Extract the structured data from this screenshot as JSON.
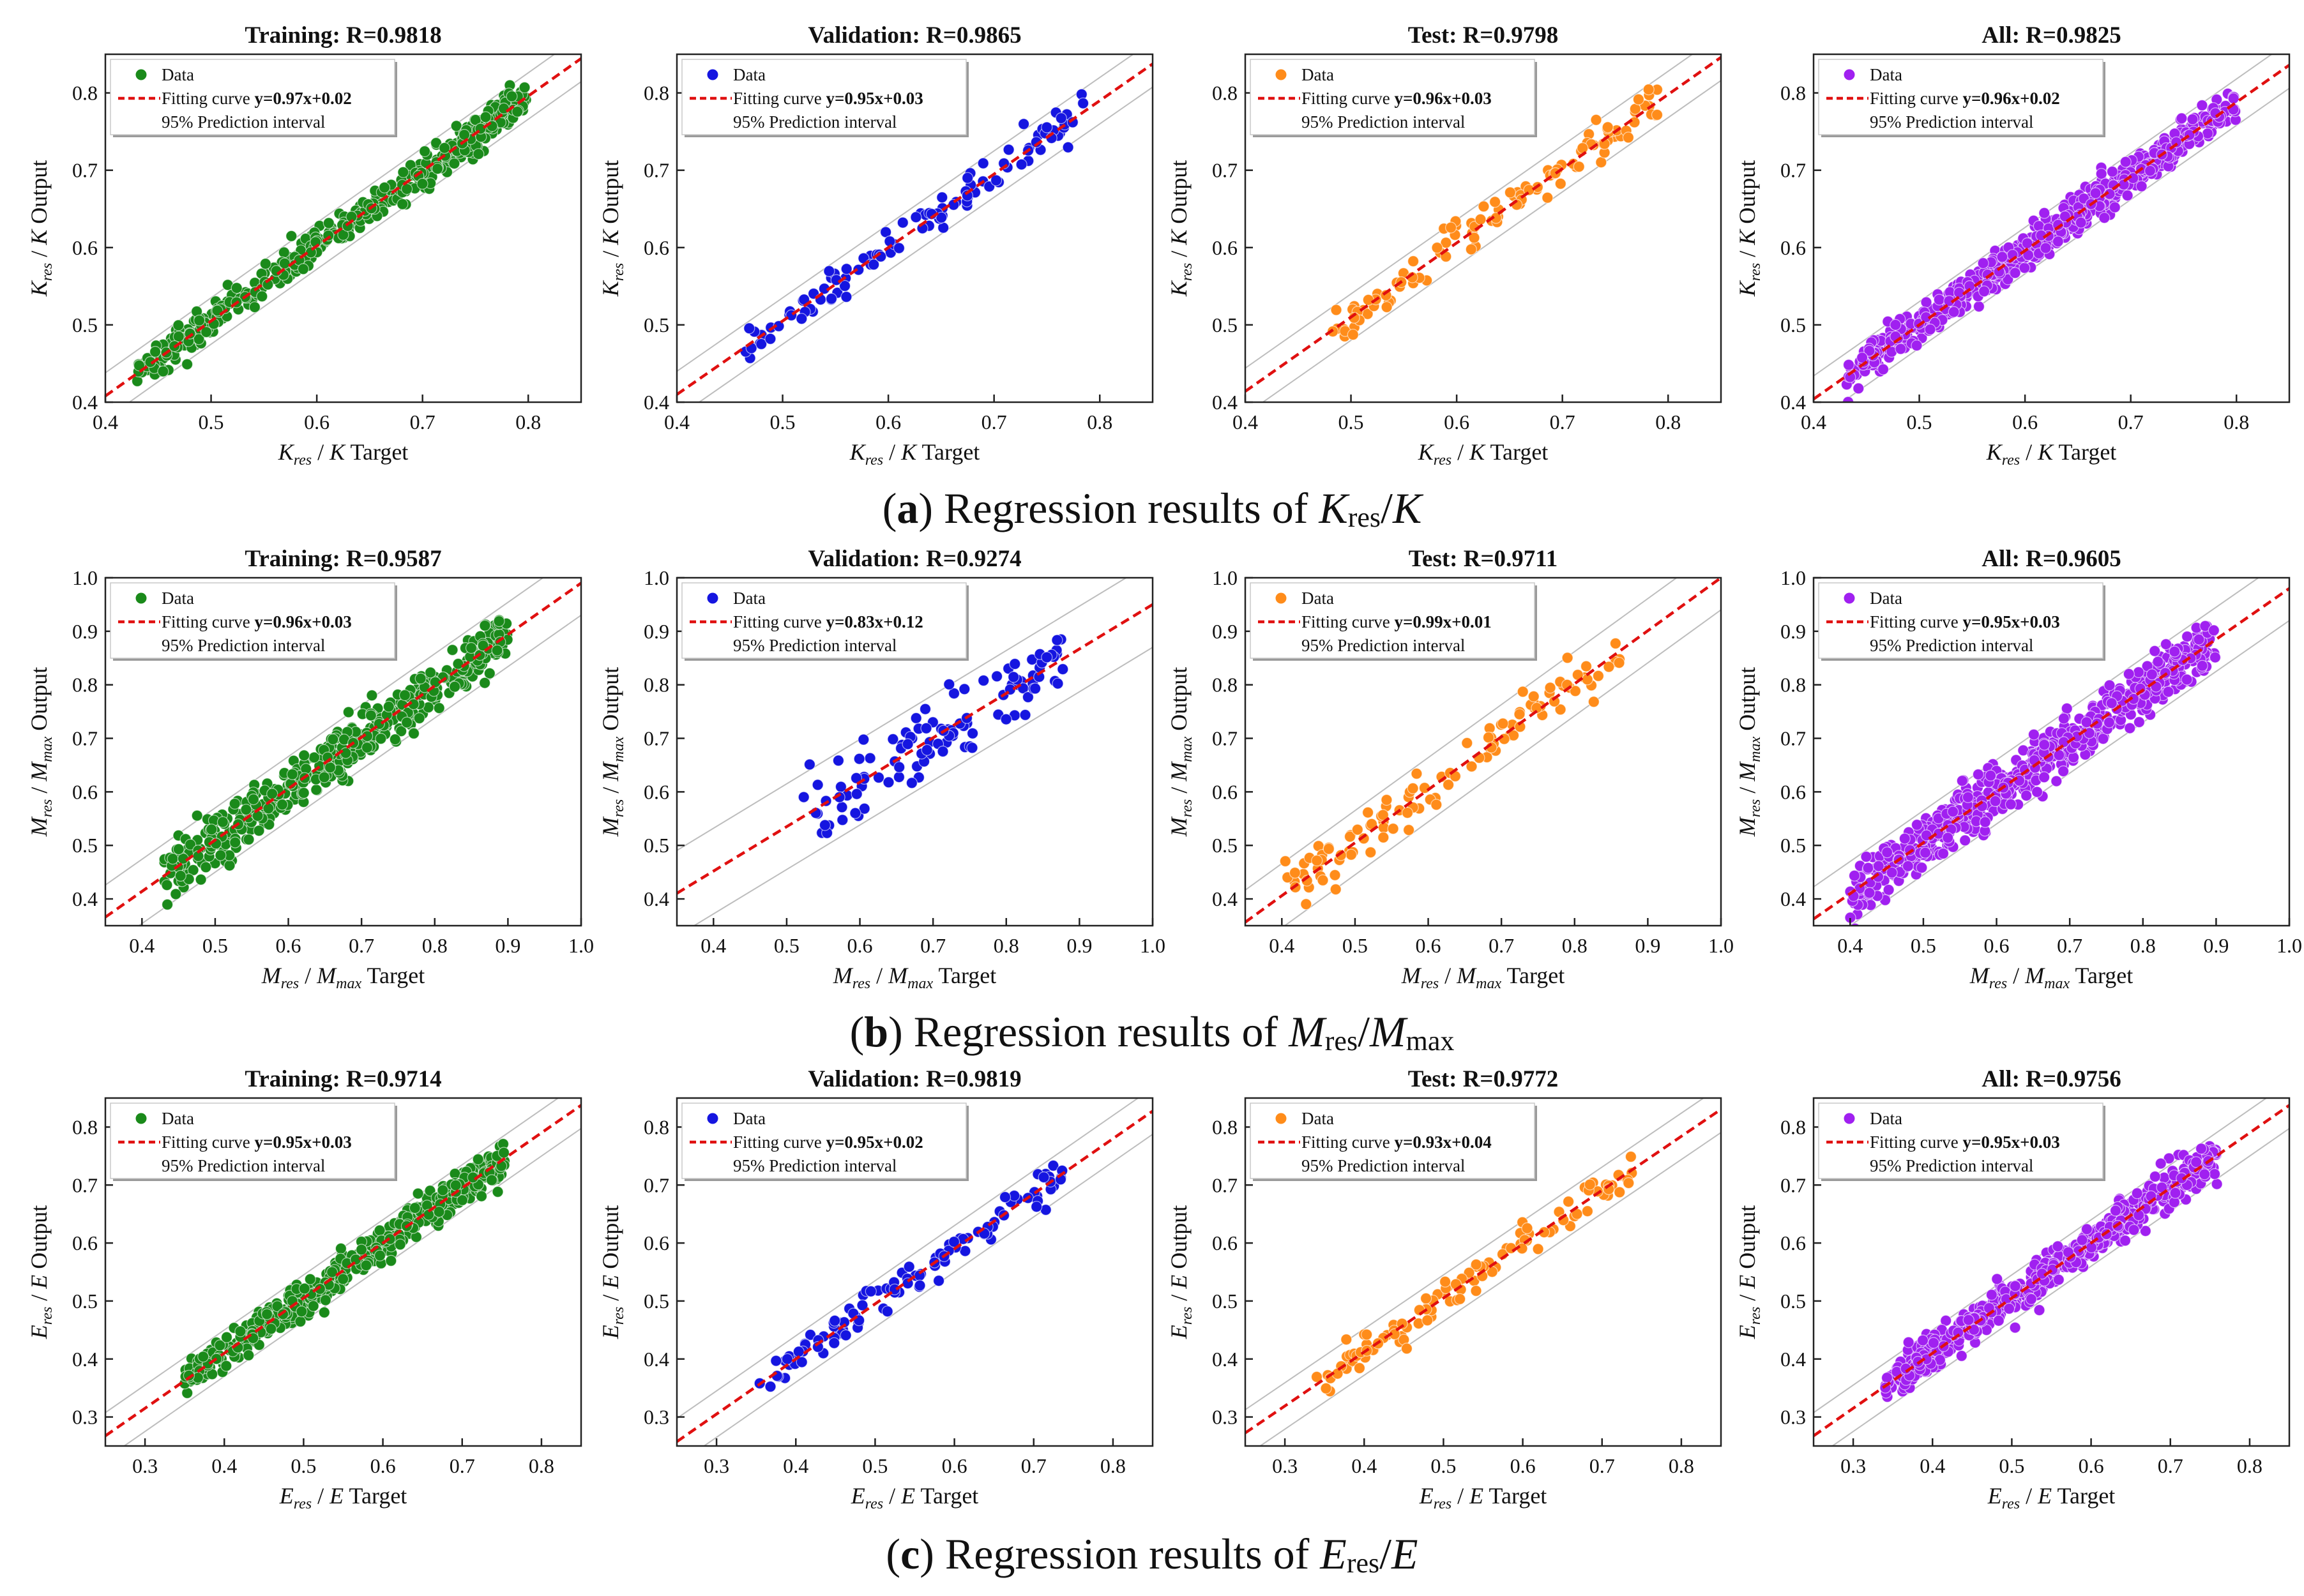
{
  "figure": {
    "captions": [
      {
        "letter": "a",
        "open": "(",
        "close": ")",
        "prefix": " Regression results of ",
        "num_var": "K",
        "num_sub": "res",
        "slash": "/",
        "den_var": "K",
        "den_sub": ""
      },
      {
        "letter": "b",
        "open": "(",
        "close": ")",
        "prefix": " Regression results of ",
        "num_var": "M",
        "num_sub": "res",
        "slash": "/",
        "den_var": "M",
        "den_sub": "max"
      },
      {
        "letter": "c",
        "open": "(",
        "close": ")",
        "prefix": " Regression results of ",
        "num_var": "E",
        "num_sub": "res",
        "slash": "/",
        "den_var": "E",
        "den_sub": ""
      }
    ],
    "legend": {
      "data_label": "Data",
      "fit_label": "Fitting curve",
      "pi_label": "95% Prediction interval"
    },
    "axis_suffix": {
      "x": "Target",
      "y": "Output"
    }
  },
  "colors": {
    "Training": "#1a8a1a",
    "Validation": "#1515e0",
    "Test": "#ff8c1a",
    "All": "#a020f0",
    "fit": "#e01010",
    "pi": "#bdbdbd"
  },
  "chart_data": [
    {
      "type": "scatter",
      "group": "a",
      "title": "Training: R=0.9818",
      "set": "Training",
      "xlabel": "Kres / K Target",
      "ylabel": "Kres / K Output",
      "var": {
        "num": "K",
        "num_sub": "res",
        "den": "K",
        "den_sub": ""
      },
      "xlim": [
        0.4,
        0.85
      ],
      "ylim": [
        0.4,
        0.85
      ],
      "xticks": [
        "0.4",
        "0.5",
        "0.6",
        "0.7",
        "0.8"
      ],
      "yticks": [
        "0.4",
        "0.5",
        "0.6",
        "0.7",
        "0.8"
      ],
      "fit": {
        "label": "y=0.97x+0.02",
        "slope": 0.97,
        "intercept": 0.02
      },
      "pi_half_width": 0.03,
      "n": 480,
      "x_range": [
        0.43,
        0.8
      ],
      "noise": 0.012
    },
    {
      "type": "scatter",
      "group": "a",
      "title": "Validation: R=0.9865",
      "set": "Validation",
      "xlabel": "Kres / K Target",
      "ylabel": "Kres / K Output",
      "var": {
        "num": "K",
        "num_sub": "res",
        "den": "K",
        "den_sub": ""
      },
      "xlim": [
        0.4,
        0.85
      ],
      "ylim": [
        0.4,
        0.85
      ],
      "xticks": [
        "0.4",
        "0.5",
        "0.6",
        "0.7",
        "0.8"
      ],
      "yticks": [
        "0.4",
        "0.5",
        "0.6",
        "0.7",
        "0.8"
      ],
      "fit": {
        "label": "y=0.95x+0.03",
        "slope": 0.95,
        "intercept": 0.03
      },
      "pi_half_width": 0.03,
      "n": 110,
      "x_range": [
        0.46,
        0.79
      ],
      "noise": 0.012
    },
    {
      "type": "scatter",
      "group": "a",
      "title": "Test: R=0.9798",
      "set": "Test",
      "xlabel": "Kres / K Target",
      "ylabel": "Kres / K Output",
      "var": {
        "num": "K",
        "num_sub": "res",
        "den": "K",
        "den_sub": ""
      },
      "xlim": [
        0.4,
        0.85
      ],
      "ylim": [
        0.4,
        0.85
      ],
      "xticks": [
        "0.4",
        "0.5",
        "0.6",
        "0.7",
        "0.8"
      ],
      "yticks": [
        "0.4",
        "0.5",
        "0.6",
        "0.7",
        "0.8"
      ],
      "fit": {
        "label": "y=0.96x+0.03",
        "slope": 0.96,
        "intercept": 0.03
      },
      "pi_half_width": 0.03,
      "n": 110,
      "x_range": [
        0.48,
        0.79
      ],
      "noise": 0.012
    },
    {
      "type": "scatter",
      "group": "a",
      "title": "All: R=0.9825",
      "set": "All",
      "xlabel": "Kres / K Target",
      "ylabel": "Kres / K Output",
      "var": {
        "num": "K",
        "num_sub": "res",
        "den": "K",
        "den_sub": ""
      },
      "xlim": [
        0.4,
        0.85
      ],
      "ylim": [
        0.4,
        0.85
      ],
      "xticks": [
        "0.4",
        "0.5",
        "0.6",
        "0.7",
        "0.8"
      ],
      "yticks": [
        "0.4",
        "0.5",
        "0.6",
        "0.7",
        "0.8"
      ],
      "fit": {
        "label": "y=0.96x+0.02",
        "slope": 0.96,
        "intercept": 0.02
      },
      "pi_half_width": 0.03,
      "n": 650,
      "x_range": [
        0.43,
        0.8
      ],
      "noise": 0.012
    },
    {
      "type": "scatter",
      "group": "b",
      "title": "Training: R=0.9587",
      "set": "Training",
      "xlabel": "Mres / Mmax Target",
      "ylabel": "Mres / Mmax Output",
      "var": {
        "num": "M",
        "num_sub": "res",
        "den": "M",
        "den_sub": "max"
      },
      "xlim": [
        0.35,
        1.0
      ],
      "ylim": [
        0.35,
        1.0
      ],
      "xticks": [
        "0.4",
        "0.5",
        "0.6",
        "0.7",
        "0.8",
        "0.9",
        "1.0"
      ],
      "yticks": [
        "0.4",
        "0.5",
        "0.6",
        "0.7",
        "0.8",
        "0.9",
        "1.0"
      ],
      "fit": {
        "label": "y=0.96x+0.03",
        "slope": 0.96,
        "intercept": 0.03
      },
      "pi_half_width": 0.06,
      "n": 480,
      "x_range": [
        0.43,
        0.9
      ],
      "noise": 0.025
    },
    {
      "type": "scatter",
      "group": "b",
      "title": "Validation: R=0.9274",
      "set": "Validation",
      "xlabel": "Mres / Mmax Target",
      "ylabel": "Mres / Mmax Output",
      "var": {
        "num": "M",
        "num_sub": "res",
        "den": "M",
        "den_sub": "max"
      },
      "xlim": [
        0.35,
        1.0
      ],
      "ylim": [
        0.35,
        1.0
      ],
      "xticks": [
        "0.4",
        "0.5",
        "0.6",
        "0.7",
        "0.8",
        "0.9",
        "1.0"
      ],
      "yticks": [
        "0.4",
        "0.5",
        "0.6",
        "0.7",
        "0.8",
        "0.9",
        "1.0"
      ],
      "fit": {
        "label": "y=0.83x+0.12",
        "slope": 0.83,
        "intercept": 0.12
      },
      "pi_half_width": 0.08,
      "n": 110,
      "x_range": [
        0.52,
        0.88
      ],
      "noise": 0.035
    },
    {
      "type": "scatter",
      "group": "b",
      "title": "Test: R=0.9711",
      "set": "Test",
      "xlabel": "Mres / Mmax Target",
      "ylabel": "Mres / Mmax Output",
      "var": {
        "num": "M",
        "num_sub": "res",
        "den": "M",
        "den_sub": "max"
      },
      "xlim": [
        0.35,
        1.0
      ],
      "ylim": [
        0.35,
        1.0
      ],
      "xticks": [
        "0.4",
        "0.5",
        "0.6",
        "0.7",
        "0.8",
        "0.9",
        "1.0"
      ],
      "yticks": [
        "0.4",
        "0.5",
        "0.6",
        "0.7",
        "0.8",
        "0.9",
        "1.0"
      ],
      "fit": {
        "label": "y=0.99x+0.01",
        "slope": 0.99,
        "intercept": 0.01
      },
      "pi_half_width": 0.06,
      "n": 110,
      "x_range": [
        0.4,
        0.87
      ],
      "noise": 0.025
    },
    {
      "type": "scatter",
      "group": "b",
      "title": "All: R=0.9605",
      "set": "All",
      "xlabel": "Mres / Mmax Target",
      "ylabel": "Mres / Mmax Output",
      "var": {
        "num": "M",
        "num_sub": "res",
        "den": "M",
        "den_sub": "max"
      },
      "xlim": [
        0.35,
        1.0
      ],
      "ylim": [
        0.35,
        1.0
      ],
      "xticks": [
        "0.4",
        "0.5",
        "0.6",
        "0.7",
        "0.8",
        "0.9",
        "1.0"
      ],
      "yticks": [
        "0.4",
        "0.5",
        "0.6",
        "0.7",
        "0.8",
        "0.9",
        "1.0"
      ],
      "fit": {
        "label": "y=0.95x+0.03",
        "slope": 0.95,
        "intercept": 0.03
      },
      "pi_half_width": 0.06,
      "n": 650,
      "x_range": [
        0.4,
        0.9
      ],
      "noise": 0.025
    },
    {
      "type": "scatter",
      "group": "c",
      "title": "Training: R=0.9714",
      "set": "Training",
      "xlabel": "Eres / E Target",
      "ylabel": "Eres / E Output",
      "var": {
        "num": "E",
        "num_sub": "res",
        "den": "E",
        "den_sub": ""
      },
      "xlim": [
        0.25,
        0.85
      ],
      "ylim": [
        0.25,
        0.85
      ],
      "xticks": [
        "0.3",
        "0.4",
        "0.5",
        "0.6",
        "0.7",
        "0.8"
      ],
      "yticks": [
        "0.3",
        "0.4",
        "0.5",
        "0.6",
        "0.7",
        "0.8"
      ],
      "fit": {
        "label": "y=0.95x+0.03",
        "slope": 0.95,
        "intercept": 0.03
      },
      "pi_half_width": 0.04,
      "n": 480,
      "x_range": [
        0.35,
        0.76
      ],
      "noise": 0.016
    },
    {
      "type": "scatter",
      "group": "c",
      "title": "Validation: R=0.9819",
      "set": "Validation",
      "xlabel": "Eres / E Target",
      "ylabel": "Eres / E Output",
      "var": {
        "num": "E",
        "num_sub": "res",
        "den": "E",
        "den_sub": ""
      },
      "xlim": [
        0.25,
        0.85
      ],
      "ylim": [
        0.25,
        0.85
      ],
      "xticks": [
        "0.3",
        "0.4",
        "0.5",
        "0.6",
        "0.7",
        "0.8"
      ],
      "yticks": [
        "0.3",
        "0.4",
        "0.5",
        "0.6",
        "0.7",
        "0.8"
      ],
      "fit": {
        "label": "y=0.95x+0.02",
        "slope": 0.95,
        "intercept": 0.02
      },
      "pi_half_width": 0.04,
      "n": 110,
      "x_range": [
        0.34,
        0.74
      ],
      "noise": 0.015
    },
    {
      "type": "scatter",
      "group": "c",
      "title": "Test: R=0.9772",
      "set": "Test",
      "xlabel": "Eres / E Target",
      "ylabel": "Eres / E Output",
      "var": {
        "num": "E",
        "num_sub": "res",
        "den": "E",
        "den_sub": ""
      },
      "xlim": [
        0.25,
        0.85
      ],
      "ylim": [
        0.25,
        0.85
      ],
      "xticks": [
        "0.3",
        "0.4",
        "0.5",
        "0.6",
        "0.7",
        "0.8"
      ],
      "yticks": [
        "0.3",
        "0.4",
        "0.5",
        "0.6",
        "0.7",
        "0.8"
      ],
      "fit": {
        "label": "y=0.93x+0.04",
        "slope": 0.93,
        "intercept": 0.04
      },
      "pi_half_width": 0.04,
      "n": 110,
      "x_range": [
        0.34,
        0.74
      ],
      "noise": 0.016
    },
    {
      "type": "scatter",
      "group": "c",
      "title": "All: R=0.9756",
      "set": "All",
      "xlabel": "Eres / E Target",
      "ylabel": "Eres / E Output",
      "var": {
        "num": "E",
        "num_sub": "res",
        "den": "E",
        "den_sub": ""
      },
      "xlim": [
        0.25,
        0.85
      ],
      "ylim": [
        0.25,
        0.85
      ],
      "xticks": [
        "0.3",
        "0.4",
        "0.5",
        "0.6",
        "0.7",
        "0.8"
      ],
      "yticks": [
        "0.3",
        "0.4",
        "0.5",
        "0.6",
        "0.7",
        "0.8"
      ],
      "fit": {
        "label": "y=0.95x+0.03",
        "slope": 0.95,
        "intercept": 0.03
      },
      "pi_half_width": 0.04,
      "n": 650,
      "x_range": [
        0.34,
        0.76
      ],
      "noise": 0.016
    }
  ]
}
